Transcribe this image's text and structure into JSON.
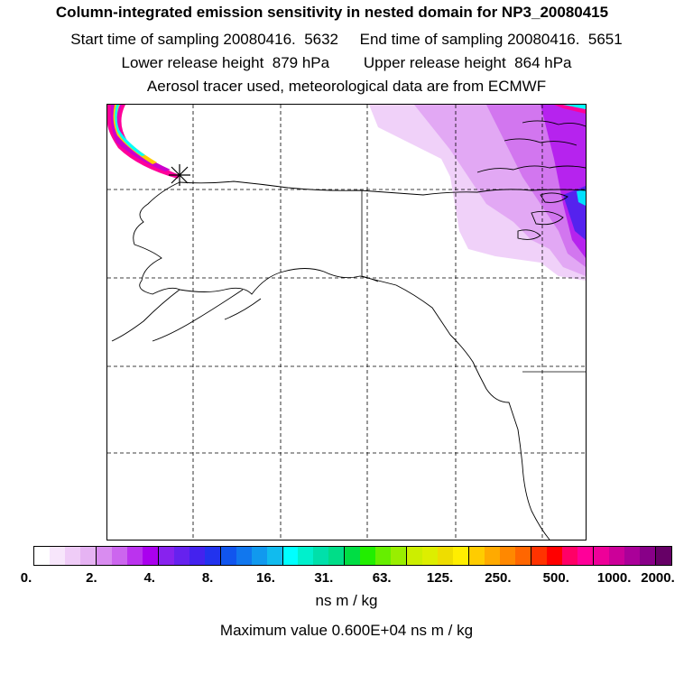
{
  "title": {
    "line1": "Column-integrated emission sensitivity in nested domain for NP3_20080415",
    "line2": "Start time of sampling 20080416.  5632     End time of sampling 20080416.  5651",
    "line3": "Lower release height  879 hPa        Upper release height  864 hPa",
    "line4": "Aerosol tracer used, meteorological data are from ECMWF"
  },
  "map": {
    "region": "Alaska and western North America",
    "release_marker": "asterisk-release-point",
    "coastline_color": "#000000",
    "grid_style": "dashed"
  },
  "colorbar": {
    "colors": [
      "#ffffff",
      "#f7e6fb",
      "#efccf7",
      "#e6b3f3",
      "#d98cf0",
      "#cc66ee",
      "#bb33ee",
      "#aa00ee",
      "#8822ee",
      "#6622ee",
      "#4422ee",
      "#2233ee",
      "#1155ee",
      "#1177ee",
      "#1199ee",
      "#11bbee",
      "#00ffff",
      "#00f0cc",
      "#00e0aa",
      "#00dd88",
      "#00dd44",
      "#22ee00",
      "#66ee00",
      "#99ee00",
      "#ccee00",
      "#ddee00",
      "#eedd00",
      "#ffee00",
      "#ffcc00",
      "#ffaa00",
      "#ff8800",
      "#ff6600",
      "#ff3300",
      "#ff0000",
      "#ff0066",
      "#ff0099",
      "#ee0099",
      "#cc0099",
      "#aa0099",
      "#880088",
      "#660066"
    ],
    "tick_labels": [
      "0.",
      "2.",
      "4.",
      "8.",
      "16.",
      "31.",
      "63.",
      "125.",
      "250.",
      "500.",
      "1000.",
      "2000."
    ],
    "units": "ns m / kg"
  },
  "maximum": "Maximum value  0.600E+04 ns m / kg"
}
